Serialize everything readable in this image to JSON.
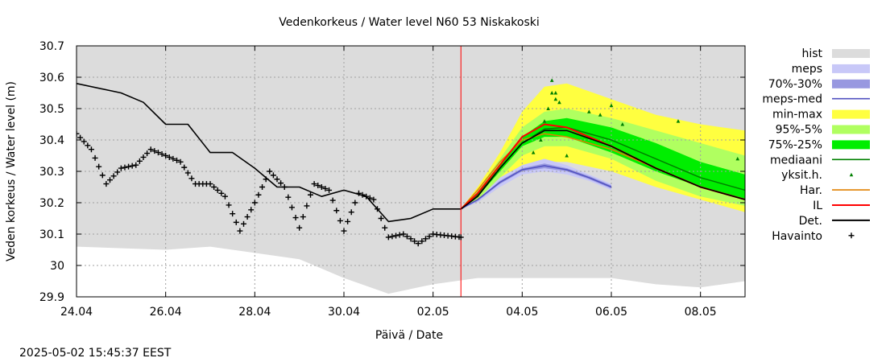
{
  "chart_data": {
    "type": "line",
    "title": "Vedenkorkeus / Water level   N60 53 Niskakoski",
    "xlabel": "Päivä / Date",
    "ylabel": "Veden korkeus / Water level (m)",
    "timestamp": "2025-05-02 15:45:37 EEST",
    "x_range": [
      "2025-04-24",
      "2025-05-09"
    ],
    "ylim": [
      29.9,
      30.7
    ],
    "grid": true,
    "legend_position": "right",
    "forecast_start": "2025-05-02T15:00",
    "x_ticks": [
      {
        "date": "2025-04-24",
        "label": "24.04"
      },
      {
        "date": "2025-04-26",
        "label": "26.04"
      },
      {
        "date": "2025-04-28",
        "label": "28.04"
      },
      {
        "date": "2025-04-30",
        "label": "30.04"
      },
      {
        "date": "2025-05-02",
        "label": "02.05"
      },
      {
        "date": "2025-05-04",
        "label": "04.05"
      },
      {
        "date": "2025-05-06",
        "label": "06.05"
      },
      {
        "date": "2025-05-08",
        "label": "08.05"
      }
    ],
    "y_ticks": [
      {
        "value": 29.9,
        "label": "29.9"
      },
      {
        "value": 30.0,
        "label": "30"
      },
      {
        "value": 30.1,
        "label": "30.1"
      },
      {
        "value": 30.2,
        "label": "30.2"
      },
      {
        "value": 30.3,
        "label": "30.3"
      },
      {
        "value": 30.4,
        "label": "30.4"
      },
      {
        "value": 30.5,
        "label": "30.5"
      },
      {
        "value": 30.6,
        "label": "30.6"
      },
      {
        "value": 30.7,
        "label": "30.7"
      }
    ],
    "colors": {
      "hist": "#dcdcdc",
      "meps": "#c8c8f8",
      "meps_70_30": "#9898e0",
      "meps_med": "#5050c0",
      "min_max": "#ffff40",
      "p95_5": "#b0ff60",
      "p75_25": "#00ee00",
      "mediaani": "#008000",
      "yksit": "#008000",
      "har": "#e08000",
      "il": "#ff0000",
      "det": "#000000",
      "havainto": "#000000",
      "forecast_line": "#ff0000",
      "grid": "#a0a0a0"
    },
    "legend": [
      {
        "key": "hist",
        "label": "hist",
        "kind": "fill"
      },
      {
        "key": "meps",
        "label": "meps",
        "kind": "fill"
      },
      {
        "key": "meps_70_30",
        "label": "70%-30%",
        "kind": "fill"
      },
      {
        "key": "meps_med",
        "label": "meps-med",
        "kind": "line"
      },
      {
        "key": "min_max",
        "label": "min-max",
        "kind": "fill"
      },
      {
        "key": "p95_5",
        "label": "95%-5%",
        "kind": "fill"
      },
      {
        "key": "p75_25",
        "label": "75%-25%",
        "kind": "fill"
      },
      {
        "key": "mediaani",
        "label": "mediaani",
        "kind": "line"
      },
      {
        "key": "yksit",
        "label": "yksit.h.",
        "kind": "triangle"
      },
      {
        "key": "har",
        "label": "Har.",
        "kind": "line"
      },
      {
        "key": "il",
        "label": "IL",
        "kind": "line"
      },
      {
        "key": "det",
        "label": "Det.",
        "kind": "line"
      },
      {
        "key": "havainto",
        "label": "Havainto",
        "kind": "plus"
      }
    ],
    "series": {
      "hist": {
        "x": [
          "2025-04-24",
          "2025-04-26",
          "2025-04-27",
          "2025-04-28",
          "2025-04-29",
          "2025-04-30",
          "2025-05-01",
          "2025-05-02",
          "2025-05-03",
          "2025-05-06",
          "2025-05-07",
          "2025-05-08",
          "2025-05-09"
        ],
        "lower": [
          30.06,
          30.05,
          30.06,
          30.04,
          30.02,
          29.96,
          29.91,
          29.94,
          29.96,
          29.96,
          29.94,
          29.93,
          29.95
        ],
        "upper": [
          30.7,
          30.7,
          30.7,
          30.7,
          30.7,
          30.7,
          30.7,
          30.7,
          30.7,
          30.7,
          30.7,
          30.7,
          30.7
        ]
      },
      "min_max": {
        "x": [
          "2025-05-02T15:00",
          "2025-05-03",
          "2025-05-03T12:00",
          "2025-05-04",
          "2025-05-04T12:00",
          "2025-05-05",
          "2025-05-06",
          "2025-05-07",
          "2025-05-08",
          "2025-05-09"
        ],
        "lower": [
          30.18,
          30.2,
          30.25,
          30.31,
          30.33,
          30.33,
          30.3,
          30.25,
          30.21,
          30.17
        ],
        "upper": [
          30.18,
          30.25,
          30.36,
          30.49,
          30.57,
          30.58,
          30.53,
          30.48,
          30.45,
          30.43
        ]
      },
      "p95_5": {
        "x": [
          "2025-05-02T15:00",
          "2025-05-03",
          "2025-05-03T12:00",
          "2025-05-04",
          "2025-05-04T12:00",
          "2025-05-05",
          "2025-05-06",
          "2025-05-07",
          "2025-05-08",
          "2025-05-09"
        ],
        "lower": [
          30.18,
          30.21,
          30.28,
          30.35,
          30.38,
          30.38,
          30.34,
          30.27,
          30.22,
          30.19
        ],
        "upper": [
          30.18,
          30.24,
          30.34,
          30.44,
          30.49,
          30.5,
          30.47,
          30.43,
          30.39,
          30.35
        ]
      },
      "p75_25": {
        "x": [
          "2025-05-02T15:00",
          "2025-05-03",
          "2025-05-03T12:00",
          "2025-05-04",
          "2025-05-04T12:00",
          "2025-05-05",
          "2025-05-06",
          "2025-05-07",
          "2025-05-08",
          "2025-05-09"
        ],
        "lower": [
          30.18,
          30.22,
          30.3,
          30.38,
          30.41,
          30.41,
          30.36,
          30.3,
          30.25,
          30.21
        ],
        "upper": [
          30.18,
          30.23,
          30.32,
          30.41,
          30.46,
          30.47,
          30.44,
          30.39,
          30.33,
          30.29
        ]
      },
      "meps": {
        "x": [
          "2025-05-02T15:00",
          "2025-05-03",
          "2025-05-03T12:00",
          "2025-05-04",
          "2025-05-04T12:00",
          "2025-05-05",
          "2025-05-05T12:00",
          "2025-05-06"
        ],
        "lower": [
          30.18,
          30.2,
          30.25,
          30.29,
          30.3,
          30.29,
          30.27,
          30.24
        ],
        "upper": [
          30.18,
          30.21,
          30.28,
          30.32,
          30.34,
          30.32,
          30.29,
          30.26
        ]
      },
      "meps_70_30": {
        "x": [
          "2025-05-02T15:00",
          "2025-05-03",
          "2025-05-03T12:00",
          "2025-05-04",
          "2025-05-04T12:00",
          "2025-05-05",
          "2025-05-05T12:00",
          "2025-05-06"
        ],
        "lower": [
          30.18,
          30.205,
          30.26,
          30.3,
          30.31,
          30.3,
          30.275,
          30.245
        ],
        "upper": [
          30.18,
          30.21,
          30.27,
          30.31,
          30.325,
          30.31,
          30.285,
          30.255
        ]
      },
      "meps_med": {
        "x": [
          "2025-05-02T15:00",
          "2025-05-03",
          "2025-05-03T12:00",
          "2025-05-04",
          "2025-05-04T12:00",
          "2025-05-05",
          "2025-05-05T12:00",
          "2025-05-06"
        ],
        "y": [
          30.18,
          30.21,
          30.265,
          30.305,
          30.318,
          30.305,
          30.28,
          30.25
        ]
      },
      "mediaani": {
        "x": [
          "2025-05-02T15:00",
          "2025-05-03",
          "2025-05-03T12:00",
          "2025-05-04",
          "2025-05-04T12:00",
          "2025-05-05",
          "2025-05-06",
          "2025-05-07",
          "2025-05-08",
          "2025-05-09"
        ],
        "y": [
          30.18,
          30.225,
          30.31,
          30.39,
          30.435,
          30.44,
          30.4,
          30.34,
          30.28,
          30.24
        ]
      },
      "har": {
        "x": [
          "2025-05-02T15:00",
          "2025-05-03",
          "2025-05-03T12:00",
          "2025-05-04",
          "2025-05-04T12:00",
          "2025-05-05",
          "2025-05-06",
          "2025-05-07",
          "2025-05-08",
          "2025-05-09"
        ],
        "y": [
          30.18,
          30.24,
          30.33,
          30.4,
          30.42,
          30.41,
          30.37,
          30.31,
          30.25,
          30.21
        ]
      },
      "il": {
        "x": [
          "2025-05-02T15:00",
          "2025-05-03",
          "2025-05-03T12:00",
          "2025-05-04",
          "2025-05-04T12:00",
          "2025-05-05",
          "2025-05-06",
          "2025-05-07",
          "2025-05-08",
          "2025-05-09"
        ],
        "y": [
          30.18,
          30.23,
          30.32,
          30.41,
          30.45,
          30.44,
          30.38,
          30.31,
          30.25,
          30.21
        ]
      },
      "det": {
        "x": [
          "2025-04-24",
          "2025-04-25",
          "2025-04-25T12:00",
          "2025-04-26",
          "2025-04-26T12:00",
          "2025-04-27",
          "2025-04-27T12:00",
          "2025-04-28",
          "2025-04-28T12:00",
          "2025-04-29",
          "2025-04-29T12:00",
          "2025-04-30",
          "2025-04-30T12:00",
          "2025-05-01",
          "2025-05-01T12:00",
          "2025-05-02",
          "2025-05-02T15:00",
          "2025-05-03",
          "2025-05-03T12:00",
          "2025-05-04",
          "2025-05-04T12:00",
          "2025-05-05",
          "2025-05-06",
          "2025-05-07",
          "2025-05-08",
          "2025-05-09"
        ],
        "y": [
          30.58,
          30.55,
          30.52,
          30.45,
          30.45,
          30.36,
          30.36,
          30.31,
          30.25,
          30.25,
          30.22,
          30.24,
          30.22,
          30.14,
          30.15,
          30.18,
          30.18,
          30.22,
          30.31,
          30.39,
          30.43,
          30.43,
          30.38,
          30.31,
          30.25,
          30.21
        ]
      },
      "havainto": {
        "x": [
          "2025-04-24",
          "2025-04-24T08:00",
          "2025-04-24T16:00",
          "2025-04-25",
          "2025-04-25T08:00",
          "2025-04-25T16:00",
          "2025-04-26",
          "2025-04-26T08:00",
          "2025-04-26T16:00",
          "2025-04-27",
          "2025-04-27T08:00",
          "2025-04-27T16:00",
          "2025-04-28",
          "2025-04-28T08:00",
          "2025-04-28T16:00",
          "2025-04-29",
          "2025-04-29T08:00",
          "2025-04-29T16:00",
          "2025-04-30",
          "2025-04-30T08:00",
          "2025-04-30T16:00",
          "2025-05-01",
          "2025-05-01T08:00",
          "2025-05-01T16:00",
          "2025-05-02",
          "2025-05-02T15:00"
        ],
        "y": [
          30.42,
          30.37,
          30.26,
          30.31,
          30.32,
          30.37,
          30.35,
          30.33,
          30.26,
          30.26,
          30.22,
          30.11,
          30.2,
          30.3,
          30.25,
          30.12,
          30.26,
          30.24,
          30.11,
          30.23,
          30.21,
          30.09,
          30.1,
          30.07,
          30.1,
          30.09
        ]
      },
      "yksit": {
        "x": [
          "2025-05-04T06:00",
          "2025-05-04T10:00",
          "2025-05-04T12:00",
          "2025-05-04T14:00",
          "2025-05-04T16:00",
          "2025-05-04T18:00",
          "2025-05-04T20:00",
          "2025-05-05",
          "2025-05-05T12:00",
          "2025-05-05T18:00",
          "2025-05-06",
          "2025-05-06T06:00",
          "2025-05-07T12:00",
          "2025-05-08T20:00",
          "2025-05-04T16:00",
          "2025-05-04T18:00"
        ],
        "y": [
          30.36,
          30.4,
          30.46,
          30.5,
          30.59,
          30.55,
          30.52,
          30.35,
          30.49,
          30.48,
          30.51,
          30.45,
          30.46,
          30.34,
          30.55,
          30.53
        ]
      }
    }
  }
}
